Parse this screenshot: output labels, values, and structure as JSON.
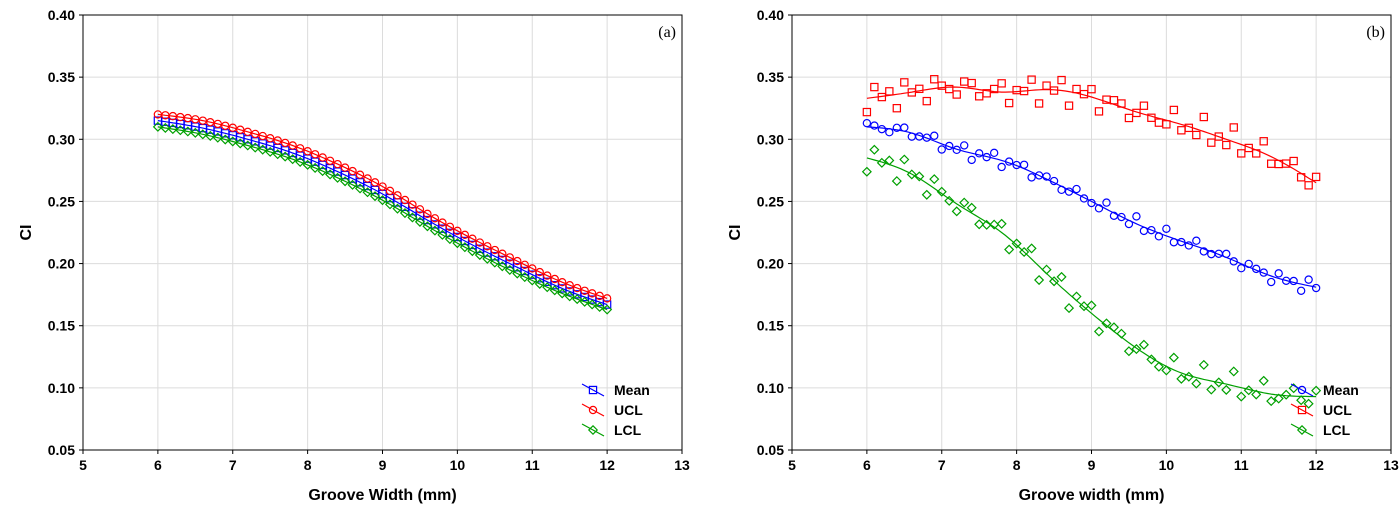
{
  "chart_data": [
    {
      "type": "scatter",
      "panel_label": "(a)",
      "xlabel": "Groove Width (mm)",
      "ylabel": "CI",
      "xlim": [
        5,
        13
      ],
      "ylim": [
        0.05,
        0.4
      ],
      "xticks": [
        "5",
        "6",
        "7",
        "8",
        "9",
        "10",
        "11",
        "12",
        "13"
      ],
      "yticks": [
        "0.05",
        "0.10",
        "0.15",
        "0.20",
        "0.25",
        "0.30",
        "0.35",
        "0.40"
      ],
      "grid": true,
      "legend_position": "bottom-right",
      "x": [
        6.0,
        6.6,
        7.2,
        7.8,
        8.4,
        9.0,
        9.6,
        10.2,
        10.8,
        11.4,
        12.0
      ],
      "series": [
        {
          "name": "Mean",
          "color": "#0000ff",
          "marker": "square",
          "values": [
            0.315,
            0.309,
            0.3,
            0.289,
            0.274,
            0.256,
            0.235,
            0.215,
            0.197,
            0.18,
            0.167
          ]
        },
        {
          "name": "UCL",
          "color": "#ff0000",
          "marker": "circle",
          "values": [
            0.32,
            0.315,
            0.306,
            0.295,
            0.28,
            0.262,
            0.24,
            0.22,
            0.202,
            0.185,
            0.172
          ]
        },
        {
          "name": "LCL",
          "color": "#00a000",
          "marker": "diamond",
          "values": [
            0.31,
            0.304,
            0.295,
            0.284,
            0.269,
            0.251,
            0.23,
            0.21,
            0.192,
            0.176,
            0.163
          ]
        }
      ]
    },
    {
      "type": "scatter",
      "panel_label": "(b)",
      "xlabel": "Groove width (mm)",
      "ylabel": "CI",
      "xlim": [
        5,
        13
      ],
      "ylim": [
        0.05,
        0.4
      ],
      "xticks": [
        "5",
        "6",
        "7",
        "8",
        "9",
        "10",
        "11",
        "12",
        "13"
      ],
      "yticks": [
        "0.05",
        "0.10",
        "0.15",
        "0.20",
        "0.25",
        "0.30",
        "0.35",
        "0.40"
      ],
      "grid": true,
      "legend_position": "bottom-right",
      "x": [
        6.0,
        6.6,
        7.2,
        7.8,
        8.4,
        9.0,
        9.6,
        10.2,
        10.8,
        11.4,
        12.0
      ],
      "series": [
        {
          "name": "Mean",
          "color": "#0000ff",
          "marker": "circle",
          "values": [
            0.31,
            0.305,
            0.292,
            0.283,
            0.268,
            0.25,
            0.232,
            0.218,
            0.205,
            0.19,
            0.181
          ]
        },
        {
          "name": "UCL",
          "color": "#ff0000",
          "marker": "square",
          "values": [
            0.333,
            0.338,
            0.342,
            0.338,
            0.34,
            0.334,
            0.322,
            0.312,
            0.3,
            0.286,
            0.265
          ]
        },
        {
          "name": "LCL",
          "color": "#00a000",
          "marker": "diamond",
          "values": [
            0.285,
            0.272,
            0.248,
            0.225,
            0.192,
            0.16,
            0.132,
            0.112,
            0.103,
            0.095,
            0.093
          ]
        }
      ]
    }
  ]
}
